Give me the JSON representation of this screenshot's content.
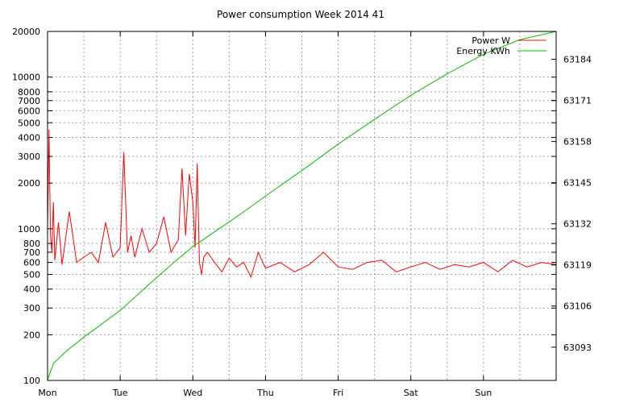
{
  "chart_data": {
    "type": "line",
    "title": "Power consumption Week 2014 41",
    "x": {
      "ticks": [
        "Mon",
        "Tue",
        "Wed",
        "Thu",
        "Fri",
        "Sat",
        "Sun"
      ],
      "grid_minor_ticks": 14,
      "range_days": [
        0,
        7
      ]
    },
    "y_left": {
      "scale": "log",
      "ylim": [
        100,
        20000
      ],
      "tick_values": [
        100,
        200,
        300,
        400,
        500,
        600,
        700,
        800,
        1000,
        2000,
        3000,
        4000,
        5000,
        6000,
        7000,
        8000,
        10000,
        20000
      ],
      "tick_labels": [
        "100",
        "200",
        "300",
        "400",
        "500",
        "600",
        "700",
        "800",
        "1000",
        "2000",
        "3000",
        "4000",
        "5000",
        "6000",
        "7000",
        "8000",
        "10000",
        "20000"
      ]
    },
    "y_right": {
      "scale": "linear",
      "ylim": [
        63082.5,
        63192.8
      ],
      "tick_values": [
        63093,
        63106,
        63119,
        63132,
        63145,
        63158,
        63171,
        63184
      ],
      "tick_labels": [
        "63093",
        "63106",
        "63119",
        "63132",
        "63145",
        "63158",
        "63171",
        "63184"
      ]
    },
    "grid": true,
    "legend": {
      "placement": "top-right"
    },
    "series": [
      {
        "name": "Power W",
        "axis": "left",
        "color": "#ff0000",
        "x_days": [
          0.0,
          0.02,
          0.04,
          0.06,
          0.08,
          0.1,
          0.15,
          0.2,
          0.3,
          0.4,
          0.5,
          0.6,
          0.7,
          0.8,
          0.9,
          1.0,
          1.05,
          1.1,
          1.15,
          1.2,
          1.3,
          1.4,
          1.5,
          1.6,
          1.7,
          1.8,
          1.85,
          1.9,
          1.95,
          2.0,
          2.03,
          2.06,
          2.09,
          2.12,
          2.15,
          2.2,
          2.3,
          2.4,
          2.5,
          2.6,
          2.7,
          2.8,
          2.9,
          3.0,
          3.2,
          3.4,
          3.6,
          3.8,
          4.0,
          4.2,
          4.4,
          4.6,
          4.8,
          5.0,
          5.2,
          5.4,
          5.6,
          5.8,
          6.0,
          6.2,
          6.4,
          6.6,
          6.8,
          7.0
        ],
        "values": [
          1000,
          4500,
          900,
          700,
          1500,
          620,
          1100,
          580,
          1300,
          600,
          650,
          700,
          600,
          1100,
          650,
          750,
          3200,
          700,
          900,
          650,
          1000,
          700,
          800,
          1200,
          700,
          850,
          2500,
          900,
          2300,
          1500,
          750,
          2700,
          600,
          500,
          650,
          700,
          600,
          520,
          640,
          560,
          600,
          480,
          700,
          550,
          600,
          520,
          580,
          700,
          560,
          540,
          600,
          620,
          520,
          560,
          600,
          540,
          580,
          560,
          600,
          520,
          620,
          560,
          600,
          580
        ]
      },
      {
        "name": "Energy KWh",
        "axis": "right",
        "color": "#00c000",
        "x_days": [
          0.0,
          0.08,
          0.25,
          0.5,
          0.75,
          1.0,
          1.25,
          1.5,
          1.75,
          2.0,
          2.25,
          2.5,
          2.75,
          3.0,
          3.5,
          4.0,
          4.5,
          5.0,
          5.5,
          6.0,
          6.5,
          7.0
        ],
        "values": [
          63082.7,
          63087.8,
          63091.6,
          63096.2,
          63100.4,
          63104.6,
          63109.8,
          63115.0,
          63120.0,
          63124.8,
          63128.7,
          63132.6,
          63136.6,
          63140.8,
          63148.8,
          63157.2,
          63165.0,
          63172.6,
          63179.4,
          63185.6,
          63190.2,
          63192.8
        ]
      }
    ]
  }
}
